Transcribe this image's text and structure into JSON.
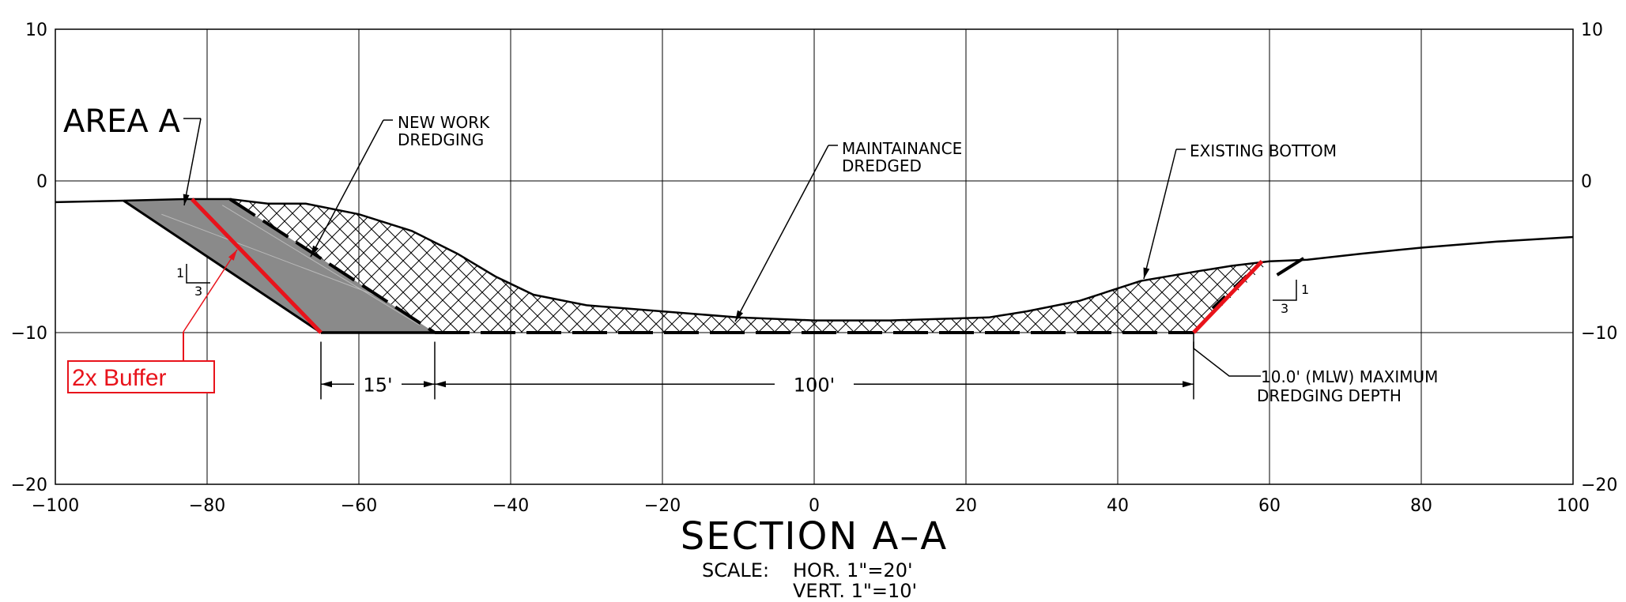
{
  "chart_data": {
    "type": "line",
    "title": "SECTION A–A",
    "scale": {
      "hor": "HOR.  1\"=20'",
      "vert": "VERT.  1\"=10'",
      "prefix": "SCALE:"
    },
    "xlabel": "",
    "ylabel": "",
    "xlim": [
      -100,
      100
    ],
    "ylim": [
      -20,
      10
    ],
    "grid": true,
    "x_ticks": [
      -100,
      -80,
      -60,
      -40,
      -20,
      0,
      20,
      40,
      60,
      80,
      100
    ],
    "y_ticks": [
      10,
      0,
      -10,
      -20
    ],
    "x_tick_labels": [
      "−100",
      "−80",
      "−60",
      "−40",
      "−20",
      "0",
      "20",
      "40",
      "60",
      "80",
      "100"
    ],
    "y_tick_labels": [
      "10",
      "0",
      "−10",
      "−20"
    ],
    "series": [
      {
        "name": "EXISTING BOTTOM",
        "points": [
          [
            -100,
            -1.4
          ],
          [
            -91,
            -1.3
          ],
          [
            -83,
            -1.2
          ],
          [
            -77,
            -1.2
          ],
          [
            -72,
            -1.5
          ],
          [
            -67,
            -1.5
          ],
          [
            -60,
            -2.2
          ],
          [
            -53,
            -3.3
          ],
          [
            -47,
            -4.8
          ],
          [
            -42,
            -6.3
          ],
          [
            -37,
            -7.5
          ],
          [
            -30,
            -8.2
          ],
          [
            -20,
            -8.6
          ],
          [
            -10,
            -9.0
          ],
          [
            0,
            -9.2
          ],
          [
            10,
            -9.2
          ],
          [
            23,
            -9.0
          ],
          [
            28,
            -8.6
          ],
          [
            35,
            -7.9
          ],
          [
            43,
            -6.6
          ],
          [
            50,
            -6.0
          ],
          [
            55,
            -5.6
          ],
          [
            60,
            -5.3
          ],
          [
            65,
            -5.2
          ],
          [
            72,
            -4.8
          ],
          [
            80,
            -4.4
          ],
          [
            90,
            -4.0
          ],
          [
            100,
            -3.7
          ]
        ]
      },
      {
        "name": "NEW WORK DREDGING",
        "points": [
          [
            -77,
            -1.2
          ],
          [
            -50,
            -10
          ],
          [
            50,
            -10
          ],
          [
            60,
            -5.3
          ]
        ]
      },
      {
        "name": "2x Buffer",
        "points": [
          [
            -82,
            -1.2
          ],
          [
            -65,
            -10
          ],
          [
            50,
            -10
          ],
          [
            59,
            -5.3
          ]
        ]
      },
      {
        "name": "AREA A",
        "points": [
          [
            -91,
            -1.3
          ],
          [
            -82,
            -1.2
          ],
          [
            -65,
            -10
          ]
        ]
      }
    ],
    "annotations": {
      "area_a": "AREA  A",
      "new_work_1": "NEW  WORK",
      "new_work_2": "DREDGING",
      "maint_1": "MAINTAINANCE",
      "maint_2": "DREDGED",
      "existing_bottom": "EXISTING  BOTTOM",
      "max_depth_1": "10.0'  (MLW)  MAXIMUM",
      "max_depth_2": "DREDGING  DEPTH",
      "buffer": "2x Buffer",
      "slope_left_rise": "1",
      "slope_left_run": "3",
      "slope_right_rise": "1",
      "slope_right_run": "3"
    },
    "dimensions": [
      {
        "from": -65,
        "to": -50,
        "label": "15'"
      },
      {
        "from": -50,
        "to": 50,
        "label": "100'"
      }
    ]
  },
  "colors": {
    "buffer": "#e8131b",
    "area_fill": "#8a8a8a",
    "ink": "#000000"
  }
}
